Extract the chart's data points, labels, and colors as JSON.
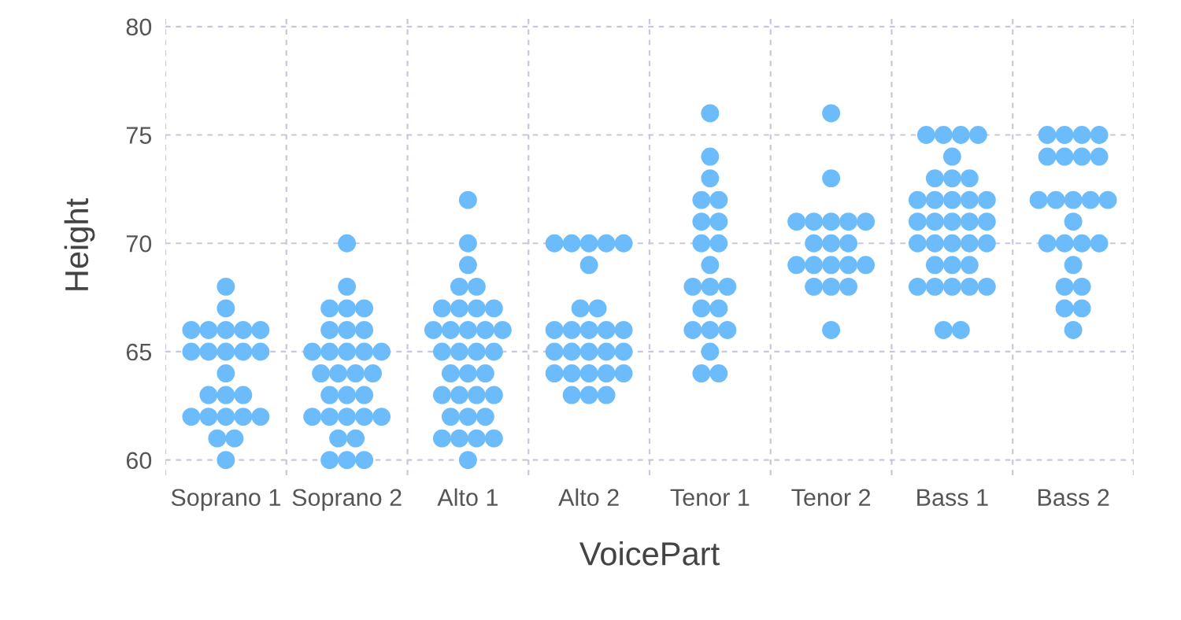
{
  "chart_data": {
    "type": "scatter",
    "xlabel": "VoicePart",
    "ylabel": "Height",
    "categories": [
      "Soprano 1",
      "Soprano 2",
      "Alto 1",
      "Alto 2",
      "Tenor 1",
      "Tenor 2",
      "Bass 1",
      "Bass 2"
    ],
    "series": [
      {
        "color": "#6cbcfc",
        "x": [
          "Soprano 1",
          "Soprano 1",
          "Soprano 1",
          "Soprano 1",
          "Soprano 1",
          "Soprano 1",
          "Soprano 1",
          "Soprano 1",
          "Soprano 1",
          "Soprano 1",
          "Soprano 1",
          "Soprano 1",
          "Soprano 1",
          "Soprano 1",
          "Soprano 1",
          "Soprano 1",
          "Soprano 1",
          "Soprano 1",
          "Soprano 1",
          "Soprano 1",
          "Soprano 1",
          "Soprano 1",
          "Soprano 1",
          "Soprano 1",
          "Soprano 2",
          "Soprano 2",
          "Soprano 2",
          "Soprano 2",
          "Soprano 2",
          "Soprano 2",
          "Soprano 2",
          "Soprano 2",
          "Soprano 2",
          "Soprano 2",
          "Soprano 2",
          "Soprano 2",
          "Soprano 2",
          "Soprano 2",
          "Soprano 2",
          "Soprano 2",
          "Soprano 2",
          "Soprano 2",
          "Soprano 2",
          "Soprano 2",
          "Soprano 2",
          "Soprano 2",
          "Soprano 2",
          "Soprano 2",
          "Soprano 2",
          "Soprano 2",
          "Soprano 2",
          "Soprano 2",
          "Soprano 2",
          "Soprano 2",
          "Alto 1",
          "Alto 1",
          "Alto 1",
          "Alto 1",
          "Alto 1",
          "Alto 1",
          "Alto 1",
          "Alto 1",
          "Alto 1",
          "Alto 1",
          "Alto 1",
          "Alto 1",
          "Alto 1",
          "Alto 1",
          "Alto 1",
          "Alto 1",
          "Alto 1",
          "Alto 1",
          "Alto 1",
          "Alto 1",
          "Alto 1",
          "Alto 1",
          "Alto 1",
          "Alto 1",
          "Alto 1",
          "Alto 1",
          "Alto 1",
          "Alto 1",
          "Alto 1",
          "Alto 1",
          "Alto 1",
          "Alto 1",
          "Alto 1",
          "Alto 2",
          "Alto 2",
          "Alto 2",
          "Alto 2",
          "Alto 2",
          "Alto 2",
          "Alto 2",
          "Alto 2",
          "Alto 2",
          "Alto 2",
          "Alto 2",
          "Alto 2",
          "Alto 2",
          "Alto 2",
          "Alto 2",
          "Alto 2",
          "Alto 2",
          "Alto 2",
          "Alto 2",
          "Alto 2",
          "Alto 2",
          "Alto 2",
          "Alto 2",
          "Alto 2",
          "Alto 2",
          "Alto 2",
          "Tenor 1",
          "Tenor 1",
          "Tenor 1",
          "Tenor 1",
          "Tenor 1",
          "Tenor 1",
          "Tenor 1",
          "Tenor 1",
          "Tenor 1",
          "Tenor 1",
          "Tenor 1",
          "Tenor 1",
          "Tenor 1",
          "Tenor 1",
          "Tenor 1",
          "Tenor 1",
          "Tenor 1",
          "Tenor 1",
          "Tenor 1",
          "Tenor 1",
          "Tenor 1",
          "Tenor 2",
          "Tenor 2",
          "Tenor 2",
          "Tenor 2",
          "Tenor 2",
          "Tenor 2",
          "Tenor 2",
          "Tenor 2",
          "Tenor 2",
          "Tenor 2",
          "Tenor 2",
          "Tenor 2",
          "Tenor 2",
          "Tenor 2",
          "Tenor 2",
          "Tenor 2",
          "Tenor 2",
          "Tenor 2",
          "Tenor 2",
          "Bass 1",
          "Bass 1",
          "Bass 1",
          "Bass 1",
          "Bass 1",
          "Bass 1",
          "Bass 1",
          "Bass 1",
          "Bass 1",
          "Bass 1",
          "Bass 1",
          "Bass 1",
          "Bass 1",
          "Bass 1",
          "Bass 1",
          "Bass 1",
          "Bass 1",
          "Bass 1",
          "Bass 1",
          "Bass 1",
          "Bass 1",
          "Bass 1",
          "Bass 1",
          "Bass 1",
          "Bass 1",
          "Bass 1",
          "Bass 1",
          "Bass 1",
          "Bass 1",
          "Bass 1",
          "Bass 1",
          "Bass 1",
          "Bass 1",
          "Bass 2",
          "Bass 2",
          "Bass 2",
          "Bass 2",
          "Bass 2",
          "Bass 2",
          "Bass 2",
          "Bass 2",
          "Bass 2",
          "Bass 2",
          "Bass 2",
          "Bass 2",
          "Bass 2",
          "Bass 2",
          "Bass 2",
          "Bass 2",
          "Bass 2",
          "Bass 2",
          "Bass 2",
          "Bass 2",
          "Bass 2",
          "Bass 2",
          "Bass 2",
          "Bass 2"
        ],
        "values": [
          68,
          67,
          66,
          66,
          66,
          66,
          66,
          65,
          65,
          65,
          65,
          65,
          64,
          63,
          63,
          63,
          62,
          62,
          62,
          62,
          62,
          61,
          61,
          60,
          70,
          68,
          67,
          67,
          67,
          66,
          66,
          66,
          65,
          65,
          65,
          65,
          65,
          64,
          64,
          64,
          64,
          63,
          63,
          63,
          62,
          62,
          62,
          62,
          62,
          61,
          61,
          60,
          60,
          60,
          72,
          70,
          69,
          68,
          68,
          67,
          67,
          67,
          67,
          66,
          66,
          66,
          66,
          66,
          65,
          65,
          65,
          65,
          64,
          64,
          64,
          63,
          63,
          63,
          63,
          62,
          62,
          62,
          61,
          61,
          61,
          61,
          60,
          70,
          70,
          70,
          70,
          70,
          69,
          67,
          67,
          66,
          66,
          66,
          66,
          66,
          65,
          65,
          65,
          65,
          65,
          64,
          64,
          64,
          64,
          64,
          63,
          63,
          63,
          76,
          74,
          73,
          72,
          72,
          71,
          71,
          70,
          70,
          69,
          68,
          68,
          68,
          67,
          67,
          66,
          66,
          66,
          65,
          64,
          64,
          76,
          73,
          71,
          71,
          71,
          71,
          71,
          70,
          70,
          70,
          69,
          69,
          69,
          69,
          69,
          68,
          68,
          68,
          66,
          75,
          75,
          75,
          75,
          74,
          73,
          73,
          73,
          72,
          72,
          72,
          72,
          72,
          71,
          71,
          71,
          71,
          71,
          70,
          70,
          70,
          70,
          70,
          69,
          69,
          69,
          68,
          68,
          68,
          68,
          68,
          66,
          66,
          75,
          75,
          75,
          75,
          74,
          74,
          74,
          74,
          72,
          72,
          72,
          72,
          72,
          71,
          70,
          70,
          70,
          70,
          69,
          68,
          68,
          67,
          67,
          66
        ]
      }
    ],
    "ylim": [
      59.3,
      80.5
    ],
    "yticks": [
      60,
      65,
      70,
      75,
      80
    ],
    "grid": true,
    "marker": "circle"
  }
}
